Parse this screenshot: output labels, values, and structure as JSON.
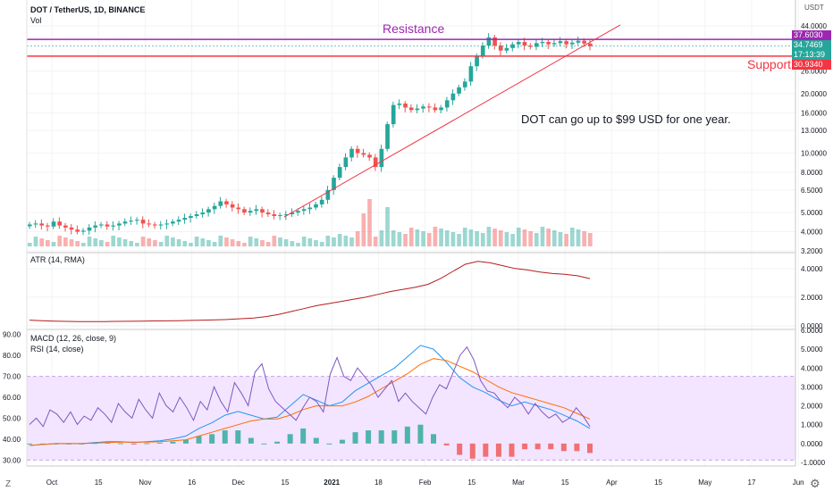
{
  "header": {
    "symbol": "DOT / TetherUS, 1D, BINANCE",
    "vol_label": "Vol",
    "currency": "USDT"
  },
  "annotations": {
    "resistance": "Resistance",
    "support": "Support",
    "note": "DOT can go up to $99 USD for one year."
  },
  "price_tags": {
    "resistance": "37.6030",
    "current": "34.7469",
    "countdown": "17:13:39",
    "support": "30.9340"
  },
  "colors": {
    "up": "#26a69a",
    "down": "#ef5350",
    "resistance": "#9c27b0",
    "support": "#f23645",
    "trendline": "#f23645",
    "atr": "#b71c1c",
    "macd": "#2196f3",
    "signal": "#ff6d00",
    "rsi": "#7e57c2",
    "rsi_band": "#f3e5ff"
  },
  "chart_data": [
    {
      "type": "candlestick",
      "title": "DOT / TetherUS, 1D, BINANCE",
      "scale": "log",
      "y_ticks": [
        "44.0000",
        "37.6030",
        "34.7469",
        "30.9340",
        "26.0000",
        "20.0000",
        "16.0000",
        "13.0000",
        "10.0000",
        "8.0000",
        "6.5000",
        "5.0000",
        "4.0000",
        "3.2000"
      ],
      "y_tick_values": [
        44,
        26,
        20,
        16,
        13,
        10,
        8,
        6.5,
        5,
        4,
        3.2
      ],
      "x_ticks": [
        "Oct",
        "15",
        "Nov",
        "16",
        "Dec",
        "15",
        "2021",
        "18",
        "Feb",
        "15",
        "Mar",
        "15",
        "Apr",
        "15",
        "May",
        "17",
        "Jun"
      ],
      "resistance_level": 37.603,
      "support_level": 30.934,
      "last_close": 34.7469,
      "trendline": {
        "start": [
          "2020-12-09",
          4.75
        ],
        "end": [
          "2021-03-24",
          44.5
        ]
      },
      "close_series_approx": [
        4.35,
        4.4,
        4.3,
        4.25,
        4.5,
        4.3,
        4.2,
        4.1,
        4.0,
        4.05,
        4.2,
        4.3,
        4.35,
        4.25,
        4.3,
        4.4,
        4.5,
        4.55,
        4.6,
        4.4,
        4.35,
        4.3,
        4.35,
        4.4,
        4.5,
        4.6,
        4.7,
        4.8,
        4.9,
        5.0,
        5.2,
        5.4,
        5.7,
        5.5,
        5.3,
        5.2,
        5.0,
        5.1,
        5.2,
        5.0,
        4.9,
        4.8,
        4.85,
        4.9,
        5.0,
        5.1,
        5.2,
        5.3,
        5.5,
        5.8,
        6.5,
        7.5,
        8.5,
        9.5,
        10.5,
        10.0,
        9.8,
        9.5,
        8.5,
        10.5,
        14.0,
        17.5,
        17.8,
        17.0,
        16.5,
        16.8,
        17.2,
        17.0,
        16.5,
        17.0,
        18.5,
        20.0,
        21.5,
        23.0,
        27.5,
        31.0,
        35.0,
        38.5,
        35.0,
        33.0,
        34.0,
        35.5,
        36.5,
        35.0,
        34.5,
        36.0,
        36.5,
        35.5,
        36.0,
        36.8,
        35.5,
        36.2,
        37.0,
        35.8,
        34.7
      ],
      "volume_note": "volume bars shown at bottom of price pane"
    },
    {
      "type": "line",
      "title": "ATR (14, RMA)",
      "y_ticks": [
        "4.0000",
        "2.0000",
        "0.0000"
      ],
      "y_range": [
        0,
        4.8
      ],
      "values": [
        0.4,
        0.36,
        0.33,
        0.31,
        0.3,
        0.3,
        0.3,
        0.31,
        0.32,
        0.33,
        0.34,
        0.35,
        0.36,
        0.38,
        0.4,
        0.42,
        0.45,
        0.5,
        0.55,
        0.65,
        0.8,
        1.0,
        1.2,
        1.4,
        1.55,
        1.7,
        1.85,
        2.0,
        2.2,
        2.4,
        2.55,
        2.7,
        2.9,
        3.3,
        3.8,
        4.3,
        4.5,
        4.4,
        4.2,
        4.0,
        3.9,
        3.75,
        3.65,
        3.6,
        3.5,
        3.3
      ]
    },
    {
      "type": "line",
      "title": "MACD (12, 26, close, 9)",
      "y_ticks": [
        "6.0000",
        "5.0000",
        "4.0000",
        "3.0000",
        "2.0000",
        "1.0000",
        "0.0000",
        "-1.0000"
      ],
      "y_range": [
        -1,
        6
      ],
      "series": [
        {
          "name": "MACD",
          "values": [
            -0.1,
            -0.05,
            0,
            0,
            0,
            0.05,
            0.1,
            0.1,
            0.05,
            0.1,
            0.15,
            0.25,
            0.4,
            0.8,
            1.1,
            1.5,
            1.7,
            1.5,
            1.3,
            1.4,
            2.0,
            2.6,
            2.3,
            2.0,
            2.2,
            2.8,
            3.2,
            3.6,
            4.0,
            4.6,
            5.2,
            5.0,
            4.3,
            3.5,
            3.0,
            2.7,
            2.3,
            2.0,
            2.2,
            2.0,
            1.8,
            1.5,
            1.2,
            0.8
          ]
        },
        {
          "name": "Signal",
          "values": [
            -0.1,
            -0.05,
            0,
            0,
            0,
            0.02,
            0.05,
            0.08,
            0.08,
            0.08,
            0.1,
            0.15,
            0.2,
            0.4,
            0.6,
            0.8,
            1.0,
            1.2,
            1.3,
            1.3,
            1.5,
            1.8,
            2.0,
            2.0,
            2.0,
            2.2,
            2.5,
            2.9,
            3.3,
            3.7,
            4.2,
            4.5,
            4.4,
            4.1,
            3.8,
            3.4,
            3.0,
            2.7,
            2.5,
            2.3,
            2.1,
            1.9,
            1.6,
            1.3
          ]
        }
      ]
    },
    {
      "type": "line",
      "title": "RSI (14, close)",
      "y_ticks": [
        "90.00",
        "80.00",
        "70.00",
        "60.00",
        "50.00",
        "40.00",
        "30.00"
      ],
      "y_range": [
        28,
        92
      ],
      "band": [
        30,
        70
      ],
      "values": [
        47,
        50,
        46,
        54,
        52,
        48,
        53,
        47,
        51,
        49,
        55,
        52,
        48,
        57,
        53,
        50,
        59,
        54,
        50,
        62,
        56,
        53,
        60,
        55,
        49,
        58,
        54,
        65,
        58,
        53,
        67,
        62,
        56,
        72,
        76,
        64,
        58,
        55,
        52,
        49,
        55,
        60,
        58,
        53,
        71,
        79,
        70,
        68,
        74,
        70,
        66,
        60,
        64,
        68,
        58,
        62,
        58,
        55,
        52,
        60,
        66,
        64,
        72,
        80,
        84,
        78,
        68,
        63,
        62,
        58,
        55,
        60,
        57,
        52,
        57,
        53,
        50,
        52,
        48,
        50,
        55,
        51,
        46
      ]
    }
  ]
}
